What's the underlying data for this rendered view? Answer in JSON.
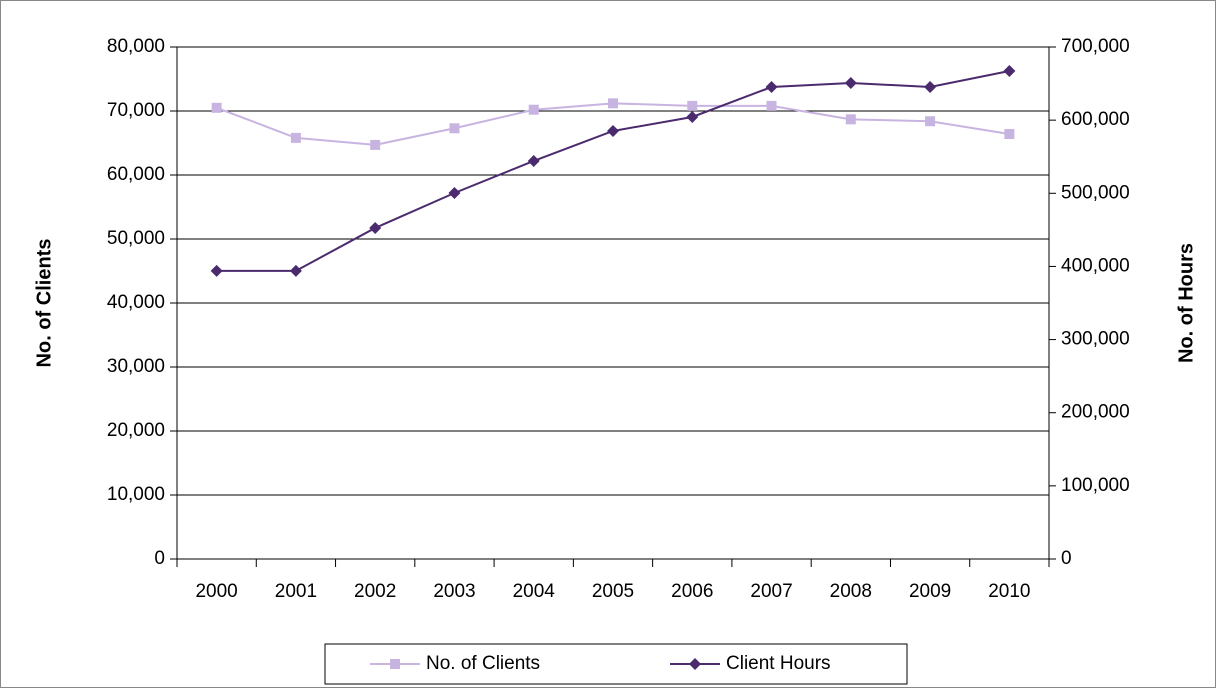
{
  "chart_data": {
    "type": "line",
    "categories": [
      "2000",
      "2001",
      "2002",
      "2003",
      "2004",
      "2005",
      "2006",
      "2007",
      "2008",
      "2009",
      "2010"
    ],
    "series": [
      {
        "name": "No. of Clients",
        "color": "#c8b4e0",
        "marker": "square",
        "axis": "y",
        "values": [
          70500,
          65800,
          64700,
          67300,
          70200,
          71200,
          70800,
          70800,
          68700,
          68400,
          66400
        ]
      },
      {
        "name": "Client Hours",
        "color": "#4b2a6e",
        "marker": "diamond",
        "axis": "y2",
        "values": [
          394000,
          394000,
          452600,
          500400,
          544200,
          585200,
          604300,
          645300,
          650800,
          645300,
          667200
        ]
      }
    ],
    "ylabel": "No. of Clients",
    "y2label": "No. of Hours",
    "ylim": [
      0,
      80000
    ],
    "yticks": [
      0,
      {
        "value": 10000,
        "label": "10,000"
      },
      {
        "value": 20000,
        "label": "20,000"
      },
      {
        "value": 30000,
        "label": "30,000"
      },
      {
        "value": 40000,
        "label": "40,000"
      },
      {
        "value": 50000,
        "label": "50,000"
      },
      {
        "value": 60000,
        "label": "60,000"
      },
      {
        "value": 70000,
        "label": "70,000"
      },
      {
        "value": 80000,
        "label": "80,000"
      }
    ],
    "y2lim": [
      0,
      700000
    ],
    "y2ticks": [
      0,
      {
        "value": 100000,
        "label": "100,000"
      },
      {
        "value": 200000,
        "label": "200,000"
      },
      {
        "value": 300000,
        "label": "300,000"
      },
      {
        "value": 400000,
        "label": "400,000"
      },
      {
        "value": 500000,
        "label": "500,000"
      },
      {
        "value": 600000,
        "label": "600,000"
      },
      {
        "value": 700000,
        "label": "700,000"
      }
    ],
    "grid": true,
    "legend": "bottom"
  }
}
